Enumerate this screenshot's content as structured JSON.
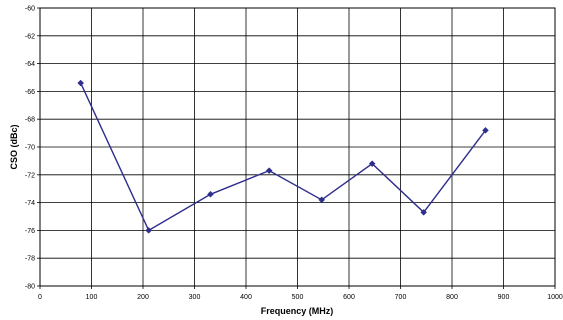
{
  "chart_data": {
    "type": "line",
    "xlabel": "Frequency (MHz)",
    "ylabel": "CSO (dBc)",
    "xlim": [
      0,
      1000
    ],
    "ylim": [
      -80,
      -60
    ],
    "xticks": [
      0,
      100,
      200,
      300,
      400,
      500,
      600,
      700,
      800,
      900,
      1000
    ],
    "xtick_labels": [
      "0",
      "100",
      "200",
      "300",
      "400",
      "500",
      "600",
      "700",
      "800",
      "900",
      "1000"
    ],
    "yticks": [
      -80,
      -78,
      -76,
      -74,
      -72,
      -70,
      -68,
      -66,
      -64,
      -62,
      -60
    ],
    "ytick_labels": [
      "-80",
      "-78",
      "-76",
      "-74",
      "-72",
      "-70",
      "-68",
      "-66",
      "-64",
      "-62",
      "-60"
    ],
    "grid": true,
    "legend": false,
    "series": [
      {
        "color": "#2e2e8c",
        "marker": "diamond",
        "x": [
          79,
          211,
          331,
          445,
          547,
          645,
          745,
          865
        ],
        "y": [
          -65.4,
          -76.0,
          -73.4,
          -71.7,
          -73.8,
          -71.2,
          -74.7,
          -68.8
        ]
      }
    ]
  }
}
